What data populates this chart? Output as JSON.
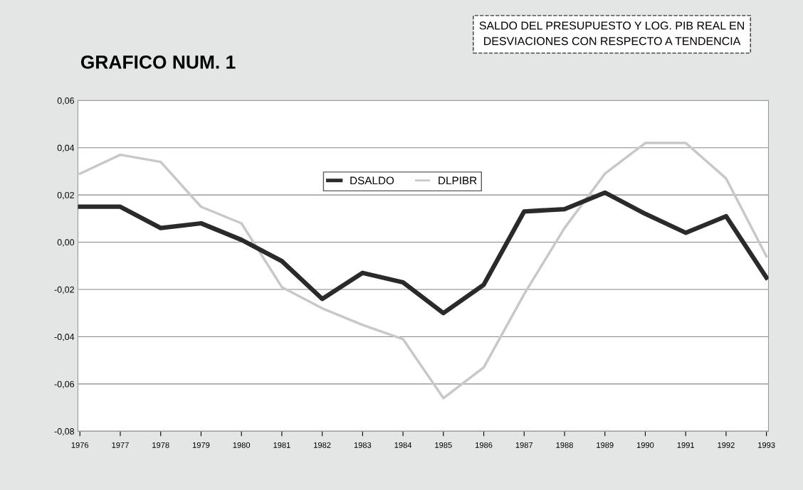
{
  "chart_data": {
    "type": "line",
    "title": "GRAFICO NUM. 1",
    "subtitle": "SALDO DEL PRESUPUESTO Y LOG. PIB REAL EN\nDESVIACIONES CON RESPECTO A TENDENCIA",
    "categories": [
      "1976",
      "1977",
      "1978",
      "1979",
      "1980",
      "1981",
      "1982",
      "1983",
      "1984",
      "1985",
      "1986",
      "1987",
      "1988",
      "1989",
      "1990",
      "1991",
      "1992",
      "1993"
    ],
    "series": [
      {
        "name": "DSALDO",
        "color": "#2a2a2a",
        "values": [
          0.015,
          0.015,
          0.006,
          0.008,
          0.001,
          -0.008,
          -0.024,
          -0.013,
          -0.017,
          -0.03,
          -0.018,
          0.013,
          0.014,
          0.021,
          0.012,
          0.004,
          0.011,
          -0.015
        ]
      },
      {
        "name": "DLPIBR",
        "color": "#c8c8c8",
        "values": [
          0.029,
          0.037,
          0.034,
          0.015,
          0.008,
          -0.019,
          -0.028,
          -0.035,
          -0.041,
          -0.066,
          -0.053,
          -0.022,
          0.006,
          0.029,
          0.042,
          0.042,
          0.027,
          -0.006
        ]
      }
    ],
    "ylim": [
      -0.08,
      0.06
    ],
    "yticks": [
      {
        "value": -0.08,
        "label": "-0,08"
      },
      {
        "value": -0.06,
        "label": "-0,06"
      },
      {
        "value": -0.04,
        "label": "-0,04"
      },
      {
        "value": -0.02,
        "label": "-0,02"
      },
      {
        "value": 0.0,
        "label": "0,00"
      },
      {
        "value": 0.02,
        "label": "0,02"
      },
      {
        "value": 0.04,
        "label": "0,04"
      },
      {
        "value": 0.06,
        "label": "0,06"
      }
    ],
    "grid": "y",
    "legend": "top",
    "marker": "none",
    "line_style": "solid"
  }
}
